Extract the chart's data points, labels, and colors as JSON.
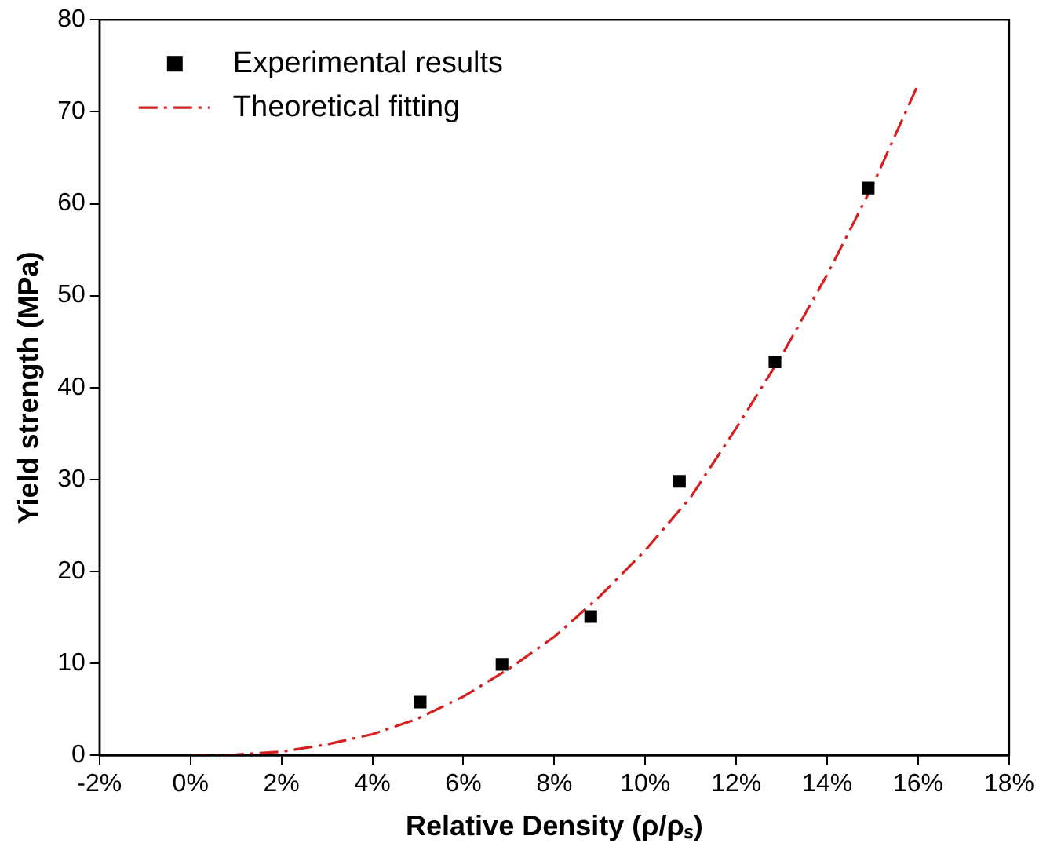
{
  "chart_data": {
    "type": "scatter",
    "xlabel": "Relative Density (ρ/ρₛ)",
    "ylabel": "Yield strength (MPa)",
    "xlim": [
      -2,
      18
    ],
    "xticks": [
      {
        "value": -2,
        "label": "-2%"
      },
      {
        "value": 0,
        "label": "0%"
      },
      {
        "value": 2,
        "label": "2%"
      },
      {
        "value": 4,
        "label": "4%"
      },
      {
        "value": 6,
        "label": "6%"
      },
      {
        "value": 8,
        "label": "8%"
      },
      {
        "value": 10,
        "label": "10%"
      },
      {
        "value": 12,
        "label": "12%"
      },
      {
        "value": 14,
        "label": "14%"
      },
      {
        "value": 16,
        "label": "16%"
      },
      {
        "value": 18,
        "label": "18%"
      }
    ],
    "ylim": [
      0,
      80
    ],
    "yticks": [
      0,
      10,
      20,
      30,
      40,
      50,
      60,
      70,
      80
    ],
    "grid": false,
    "legend": "top left",
    "series": [
      {
        "name": "Experimental results",
        "type": "scatter",
        "marker": "square",
        "color": "#000000",
        "x": [
          5.05,
          6.85,
          8.8,
          10.75,
          12.85,
          14.9
        ],
        "values": [
          5.8,
          9.9,
          15.1,
          29.8,
          42.8,
          61.7
        ]
      },
      {
        "name": "Theoretical fitting",
        "type": "line",
        "marker": "none",
        "line_style": "dashed",
        "color": "#d62020",
        "x": [
          0,
          1,
          2,
          3,
          4,
          5,
          6,
          7,
          8,
          9,
          10,
          11,
          12,
          13,
          14,
          15,
          16
        ],
        "values": [
          0,
          0.1,
          0.4,
          1.2,
          2.3,
          4,
          6.4,
          9.4,
          12.9,
          17.3,
          22.3,
          28.1,
          35.6,
          43.5,
          52.3,
          62,
          73
        ]
      }
    ]
  }
}
